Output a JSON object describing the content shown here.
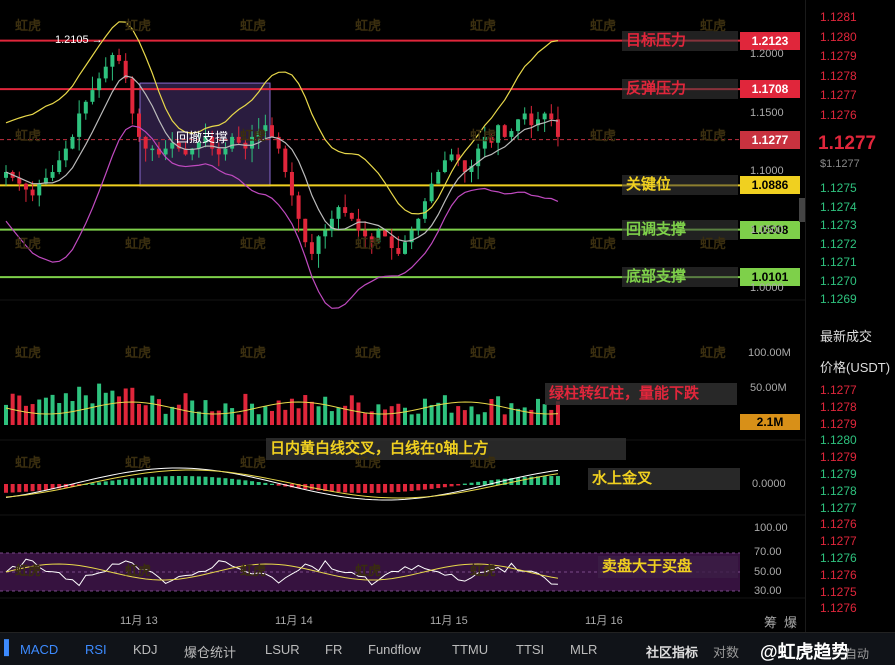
{
  "chart_data": {
    "type": "candlestick",
    "x_ticks": [
      "11月 13",
      "11月 14",
      "11月 15",
      "11月 16"
    ],
    "y_ticks": [
      "1.2000",
      "1.1500",
      "1.1000",
      "1.0500",
      "1.0000"
    ],
    "peak_label": "1.2105",
    "current_price": "1.1277",
    "lines": [
      {
        "name": "目标压力",
        "value": "1.2123",
        "color": "#e0263b"
      },
      {
        "name": "反弹压力",
        "value": "1.1708",
        "color": "#e0263b"
      },
      {
        "name": "关键位",
        "value": "1.0886",
        "color": "#f0d020"
      },
      {
        "name": "回调支撑",
        "value": "1.0508",
        "color": "#7ed04a"
      },
      {
        "name": "底部支撑",
        "value": "1.0101",
        "color": "#7ed04a"
      }
    ],
    "box_label": "回撤支撑",
    "volume_ticks": [
      "100.00M",
      "50.00M"
    ],
    "volume_tag": "2.1M",
    "macd_tick": "0.0000",
    "rsi_ticks": [
      "100.00",
      "70.00",
      "50.00",
      "30.00"
    ]
  },
  "annotations": {
    "volume": "绿柱转红柱，量能下跌",
    "macd_line": "日内黄白线交叉，白线在0轴上方",
    "macd_cross": "水上金叉",
    "rsi": "卖盘大于买盘"
  },
  "watermark": "虹虎",
  "orderbook": {
    "prices_top": [
      "1.1281",
      "1.1280",
      "1.1279",
      "1.1278",
      "1.1277",
      "1.1276"
    ],
    "last_price": "1.1277",
    "last_sub": "$1.1277",
    "prices_mid": [
      "1.1275",
      "1.1274",
      "1.1273",
      "1.1272",
      "1.1271",
      "1.1270",
      "1.1269"
    ],
    "trades_title": "最新成交",
    "trades_header": "价格(USDT)",
    "trades": [
      {
        "p": "1.1277",
        "c": "#e0263b"
      },
      {
        "p": "1.1278",
        "c": "#e0263b"
      },
      {
        "p": "1.1279",
        "c": "#e0263b"
      },
      {
        "p": "1.1280",
        "c": "#2ec27e"
      },
      {
        "p": "1.1279",
        "c": "#e0263b"
      },
      {
        "p": "1.1279",
        "c": "#2ec27e"
      },
      {
        "p": "1.1278",
        "c": "#2ec27e"
      },
      {
        "p": "1.1277",
        "c": "#2ec27e"
      },
      {
        "p": "1.1276",
        "c": "#e0263b"
      },
      {
        "p": "1.1277",
        "c": "#e0263b"
      },
      {
        "p": "1.1276",
        "c": "#2ec27e"
      },
      {
        "p": "1.1276",
        "c": "#e0263b"
      },
      {
        "p": "1.1275",
        "c": "#e0263b"
      },
      {
        "p": "1.1276",
        "c": "#e0263b"
      }
    ],
    "side_labels": [
      "筹",
      "爆"
    ]
  },
  "bottom_tabs": [
    "MACD",
    "RSI",
    "KDJ",
    "爆仓统计",
    "LSUR",
    "FR",
    "Fundflow",
    "TTMU",
    "TTSI",
    "MLR"
  ],
  "active_tabs": [
    "MACD",
    "RSI"
  ],
  "community": "社区指标",
  "brand": "@虹虎趋势",
  "right_labels": [
    "对数",
    "自动"
  ]
}
